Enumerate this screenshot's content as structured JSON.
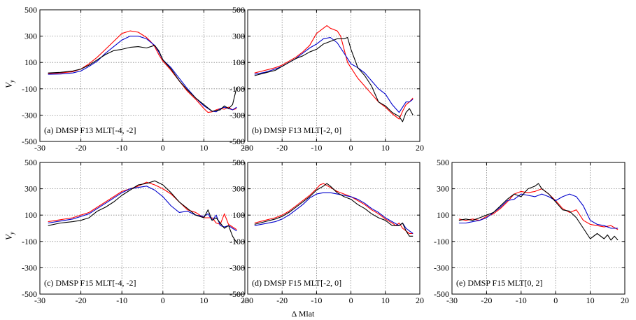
{
  "figure": {
    "x_label": "Δ Mlat",
    "y_label_main": "V",
    "y_label_sub": "y"
  },
  "chart_data": [
    {
      "type": "line",
      "panel_label": "(a) DMSP F13 MLT[-4, -2]",
      "xlim": [
        -30,
        20
      ],
      "ylim": [
        -500,
        500
      ],
      "xticks": [
        -30,
        -20,
        -10,
        0,
        10,
        20
      ],
      "yticks": [
        -500,
        -300,
        -100,
        100,
        300,
        500
      ],
      "grid": true,
      "series": [
        {
          "color": "#ff0000",
          "x": [
            -28,
            -25,
            -22,
            -20,
            -18,
            -16,
            -14,
            -12,
            -10,
            -8,
            -6,
            -4,
            -3,
            -2,
            -1,
            0,
            2,
            4,
            6,
            8,
            10,
            11,
            12,
            13,
            14,
            15,
            16,
            17,
            18
          ],
          "y": [
            15,
            20,
            30,
            50,
            90,
            140,
            200,
            260,
            320,
            340,
            330,
            290,
            260,
            220,
            160,
            110,
            40,
            -40,
            -120,
            -180,
            -250,
            -280,
            -275,
            -260,
            -250,
            -255,
            -240,
            -260,
            -250
          ]
        },
        {
          "color": "#0000cc",
          "x": [
            -28,
            -25,
            -22,
            -20,
            -18,
            -16,
            -14,
            -12,
            -10,
            -8,
            -6,
            -4,
            -2,
            -1,
            0,
            2,
            4,
            6,
            8,
            10,
            12,
            13,
            14,
            15,
            16,
            17,
            18
          ],
          "y": [
            10,
            12,
            20,
            35,
            70,
            110,
            170,
            220,
            270,
            300,
            300,
            280,
            230,
            180,
            120,
            60,
            -20,
            -100,
            -170,
            -230,
            -270,
            -275,
            -250,
            -240,
            -250,
            -260,
            -240
          ]
        },
        {
          "color": "#000000",
          "x": [
            -28,
            -25,
            -22,
            -20,
            -18,
            -16,
            -14,
            -12,
            -10,
            -8,
            -6,
            -4,
            -2,
            -1,
            0,
            2,
            4,
            6,
            8,
            10,
            12,
            14,
            15,
            16,
            17,
            18
          ],
          "y": [
            20,
            25,
            35,
            50,
            80,
            120,
            160,
            190,
            200,
            215,
            220,
            210,
            230,
            190,
            120,
            50,
            -40,
            -110,
            -170,
            -220,
            -270,
            -260,
            -230,
            -250,
            -220,
            -90
          ]
        }
      ]
    },
    {
      "type": "line",
      "panel_label": "(b) DMSP F13 MLT[-2, 0]",
      "xlim": [
        -30,
        20
      ],
      "ylim": [
        -500,
        500
      ],
      "xticks": [
        -30,
        -20,
        -10,
        0,
        10,
        20
      ],
      "yticks": [
        -500,
        -300,
        -100,
        100,
        300,
        500
      ],
      "grid": true,
      "series": [
        {
          "color": "#ff0000",
          "x": [
            -28,
            -25,
            -22,
            -20,
            -18,
            -16,
            -14,
            -12,
            -10,
            -8,
            -7,
            -6,
            -4,
            -3,
            -2,
            -1,
            0,
            2,
            4,
            6,
            8,
            10,
            12,
            14,
            15,
            16,
            17,
            18
          ],
          "y": [
            20,
            40,
            60,
            80,
            110,
            140,
            180,
            230,
            320,
            360,
            380,
            360,
            340,
            300,
            200,
            100,
            60,
            -20,
            -80,
            -140,
            -200,
            -240,
            -290,
            -330,
            -270,
            -220,
            -200,
            -170
          ]
        },
        {
          "color": "#0000cc",
          "x": [
            -28,
            -25,
            -22,
            -20,
            -18,
            -16,
            -14,
            -12,
            -10,
            -8,
            -6,
            -4,
            -2,
            0,
            2,
            4,
            6,
            8,
            10,
            12,
            14,
            15,
            16,
            17,
            18
          ],
          "y": [
            10,
            25,
            50,
            70,
            100,
            130,
            170,
            210,
            240,
            280,
            290,
            250,
            170,
            90,
            60,
            20,
            -40,
            -100,
            -140,
            -220,
            -280,
            -240,
            -200,
            -200,
            -180
          ]
        },
        {
          "color": "#000000",
          "x": [
            -28,
            -25,
            -22,
            -20,
            -18,
            -16,
            -14,
            -12,
            -10,
            -8,
            -6,
            -4,
            -2,
            -1,
            0,
            2,
            4,
            6,
            8,
            10,
            12,
            14,
            15,
            16,
            17,
            18
          ],
          "y": [
            0,
            20,
            40,
            70,
            100,
            130,
            150,
            180,
            200,
            240,
            260,
            280,
            280,
            290,
            200,
            60,
            0,
            -80,
            -200,
            -230,
            -280,
            -310,
            -350,
            -280,
            -250,
            -300
          ]
        }
      ]
    },
    {
      "type": "line",
      "panel_label": "(c) DMSP F15 MLT[-4, -2]",
      "xlim": [
        -30,
        20
      ],
      "ylim": [
        -500,
        500
      ],
      "xticks": [
        -30,
        -20,
        -10,
        0,
        10,
        20
      ],
      "yticks": [
        -500,
        -300,
        -100,
        100,
        300,
        500
      ],
      "grid": true,
      "series": [
        {
          "color": "#ff0000",
          "x": [
            -28,
            -25,
            -22,
            -20,
            -18,
            -16,
            -14,
            -12,
            -10,
            -8,
            -6,
            -4,
            -2,
            0,
            2,
            4,
            6,
            8,
            10,
            12,
            13,
            14,
            15,
            16,
            17,
            18
          ],
          "y": [
            50,
            65,
            80,
            100,
            120,
            160,
            200,
            240,
            280,
            300,
            320,
            350,
            330,
            300,
            260,
            200,
            140,
            120,
            80,
            80,
            40,
            30,
            110,
            30,
            10,
            -10
          ]
        },
        {
          "color": "#0000cc",
          "x": [
            -28,
            -25,
            -22,
            -20,
            -18,
            -16,
            -14,
            -12,
            -10,
            -8,
            -6,
            -4,
            -2,
            0,
            2,
            4,
            6,
            8,
            10,
            11,
            12,
            13,
            14,
            15,
            16,
            17,
            18
          ],
          "y": [
            40,
            55,
            70,
            90,
            110,
            150,
            190,
            230,
            270,
            300,
            310,
            320,
            290,
            240,
            170,
            120,
            130,
            100,
            90,
            110,
            60,
            100,
            20,
            10,
            20,
            0,
            -20
          ]
        },
        {
          "color": "#000000",
          "x": [
            -28,
            -25,
            -22,
            -20,
            -18,
            -16,
            -14,
            -12,
            -10,
            -8,
            -6,
            -4,
            -2,
            0,
            2,
            4,
            6,
            8,
            10,
            11,
            12,
            13,
            14,
            15,
            16,
            17,
            18
          ],
          "y": [
            20,
            40,
            50,
            60,
            80,
            130,
            160,
            200,
            250,
            290,
            330,
            340,
            360,
            330,
            270,
            200,
            150,
            100,
            80,
            140,
            60,
            80,
            40,
            0,
            20,
            -60,
            -110
          ]
        }
      ]
    },
    {
      "type": "line",
      "panel_label": "(d) DMSP F15 MLT[-2, 0]",
      "xlim": [
        -30,
        20
      ],
      "ylim": [
        -500,
        500
      ],
      "xticks": [
        -30,
        -20,
        -10,
        0,
        10,
        20
      ],
      "yticks": [
        -500,
        -300,
        -100,
        100,
        300,
        500
      ],
      "grid": true,
      "series": [
        {
          "color": "#ff0000",
          "x": [
            -28,
            -25,
            -22,
            -20,
            -18,
            -16,
            -14,
            -12,
            -10,
            -9,
            -8,
            -6,
            -4,
            -2,
            0,
            2,
            4,
            6,
            8,
            10,
            12,
            13,
            14,
            15,
            16,
            17,
            18
          ],
          "y": [
            40,
            60,
            80,
            100,
            130,
            170,
            210,
            250,
            300,
            330,
            340,
            310,
            280,
            260,
            240,
            210,
            180,
            140,
            110,
            70,
            40,
            20,
            40,
            0,
            -20,
            -40,
            -40
          ]
        },
        {
          "color": "#0000cc",
          "x": [
            -28,
            -25,
            -22,
            -20,
            -18,
            -16,
            -14,
            -12,
            -10,
            -8,
            -6,
            -4,
            -2,
            0,
            2,
            4,
            6,
            8,
            10,
            12,
            14,
            15,
            16,
            17,
            18
          ],
          "y": [
            20,
            35,
            50,
            70,
            100,
            140,
            180,
            230,
            260,
            270,
            270,
            260,
            250,
            240,
            220,
            190,
            150,
            120,
            80,
            50,
            20,
            40,
            0,
            -20,
            -40
          ]
        },
        {
          "color": "#000000",
          "x": [
            -28,
            -25,
            -22,
            -20,
            -18,
            -16,
            -14,
            -12,
            -10,
            -8,
            -7,
            -6,
            -4,
            -2,
            0,
            2,
            4,
            6,
            8,
            10,
            12,
            14,
            15,
            16,
            17,
            18
          ],
          "y": [
            30,
            50,
            70,
            90,
            120,
            160,
            200,
            240,
            290,
            320,
            340,
            320,
            270,
            240,
            220,
            180,
            150,
            110,
            80,
            60,
            20,
            20,
            40,
            -20,
            -60,
            -60
          ]
        }
      ]
    },
    {
      "type": "line",
      "panel_label": "(e) DMSP F15 MLT[0, 2]",
      "xlim": [
        -30,
        20
      ],
      "ylim": [
        -500,
        500
      ],
      "xticks": [
        -30,
        -20,
        -10,
        0,
        10,
        20
      ],
      "yticks": [
        -500,
        -300,
        -100,
        100,
        300,
        500
      ],
      "grid": true,
      "series": [
        {
          "color": "#ff0000",
          "x": [
            -28,
            -26,
            -24,
            -22,
            -20,
            -18,
            -16,
            -14,
            -12,
            -10,
            -8,
            -6,
            -4,
            -2,
            0,
            2,
            4,
            6,
            8,
            10,
            12,
            14,
            16,
            18
          ],
          "y": [
            70,
            60,
            70,
            60,
            90,
            110,
            150,
            200,
            260,
            280,
            270,
            280,
            300,
            260,
            210,
            150,
            120,
            140,
            60,
            30,
            20,
            10,
            20,
            -10
          ]
        },
        {
          "color": "#0000cc",
          "x": [
            -28,
            -26,
            -24,
            -22,
            -20,
            -18,
            -16,
            -14,
            -12,
            -10,
            -8,
            -6,
            -4,
            -2,
            0,
            2,
            4,
            6,
            8,
            10,
            12,
            14,
            16,
            18
          ],
          "y": [
            40,
            40,
            50,
            60,
            80,
            120,
            160,
            210,
            220,
            260,
            250,
            240,
            260,
            240,
            210,
            240,
            260,
            240,
            170,
            60,
            30,
            20,
            0,
            0
          ]
        },
        {
          "color": "#000000",
          "x": [
            -28,
            -26,
            -24,
            -22,
            -20,
            -18,
            -16,
            -14,
            -12,
            -10,
            -8,
            -6,
            -5,
            -4,
            -2,
            0,
            2,
            4,
            6,
            8,
            10,
            12,
            14,
            15,
            16,
            17,
            18
          ],
          "y": [
            60,
            70,
            60,
            80,
            100,
            120,
            170,
            220,
            260,
            240,
            300,
            320,
            340,
            300,
            260,
            200,
            140,
            130,
            80,
            0,
            -80,
            -40,
            -80,
            -50,
            -90,
            -60,
            -90
          ]
        }
      ]
    }
  ]
}
